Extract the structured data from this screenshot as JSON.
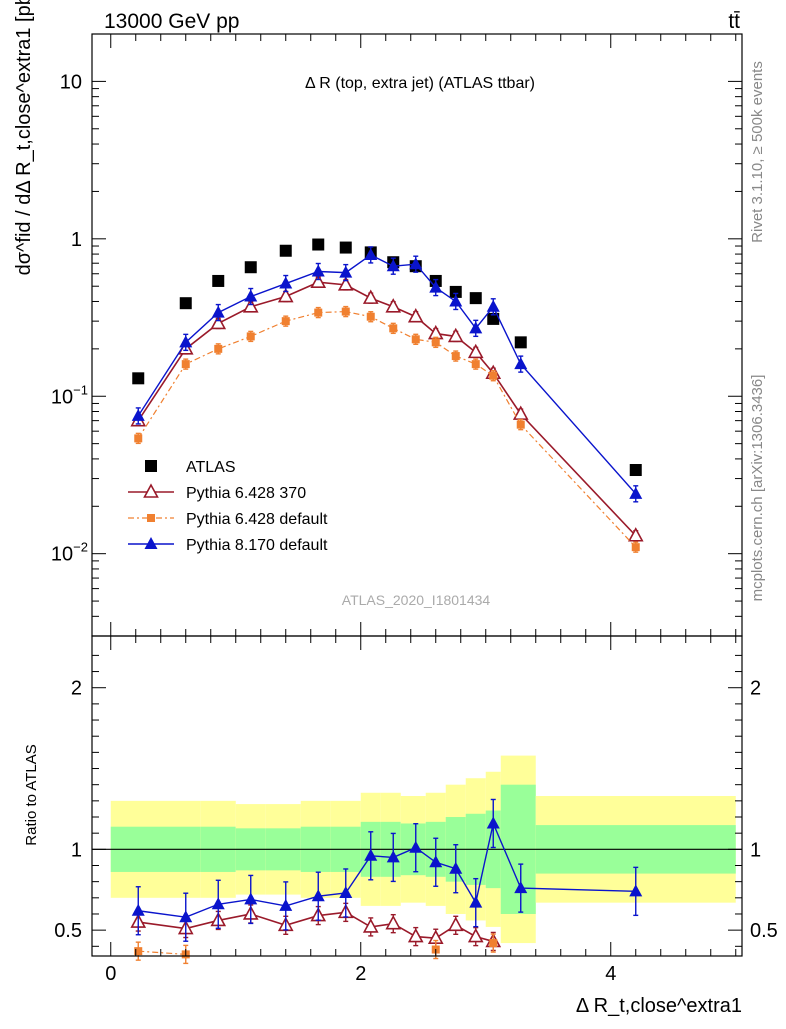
{
  "header": {
    "left": "13000 GeV pp",
    "right": "tt̄"
  },
  "side": {
    "rivet": "Rivet 3.1.10, ≥ 500k events",
    "mcplots": "mcplots.cern.ch [arXiv:1306.3436]"
  },
  "chart_data": [
    {
      "type": "scatter",
      "title": "Δ R (top, extra jet) (ATLAS ttbar)",
      "ylabel": "dσ^fid / dΔ R_t,close^extra1 [pb]",
      "watermark": "ATLAS_2020_I1801434",
      "yscale": "log",
      "ylim": [
        0.003,
        20
      ],
      "xlim": [
        -0.15,
        5.05
      ],
      "yticks": [
        {
          "v": 0.01,
          "base": "10",
          "exp": "−2"
        },
        {
          "v": 0.1,
          "base": "10",
          "exp": "−1"
        },
        {
          "v": 1,
          "base": "1",
          "exp": ""
        },
        {
          "v": 10,
          "base": "10",
          "exp": ""
        }
      ],
      "legend_position": "lower-left",
      "legend": [
        {
          "label": "ATLAS",
          "color": "#000000",
          "marker": "square"
        },
        {
          "label": "Pythia 6.428 370",
          "color": "#9a1a2a",
          "marker": "triangle-open"
        },
        {
          "label": "Pythia 6.428 default",
          "color": "#f08030",
          "marker": "square-small"
        },
        {
          "label": "Pythia 8.170 default",
          "color": "#0a14cc",
          "marker": "triangle"
        }
      ],
      "series": [
        {
          "color": "#000000",
          "x": [
            0.22,
            0.6,
            0.86,
            1.12,
            1.4,
            1.66,
            1.88,
            2.08,
            2.26,
            2.44,
            2.6,
            2.76,
            2.92,
            3.06,
            3.28,
            4.2
          ],
          "y": [
            0.13,
            0.39,
            0.54,
            0.66,
            0.84,
            0.92,
            0.88,
            0.82,
            0.71,
            0.67,
            0.54,
            0.46,
            0.42,
            0.31,
            0.22,
            0.034
          ]
        },
        {
          "color": "#9a1a2a",
          "x": [
            0.22,
            0.6,
            0.86,
            1.12,
            1.4,
            1.66,
            1.88,
            2.08,
            2.26,
            2.44,
            2.6,
            2.76,
            2.92,
            3.06,
            3.28,
            4.2
          ],
          "y": [
            0.07,
            0.2,
            0.29,
            0.37,
            0.43,
            0.53,
            0.51,
            0.42,
            0.37,
            0.32,
            0.25,
            0.24,
            0.19,
            0.14,
            0.077,
            0.013
          ]
        },
        {
          "color": "#f08030",
          "x": [
            0.22,
            0.6,
            0.86,
            1.12,
            1.4,
            1.66,
            1.88,
            2.08,
            2.26,
            2.44,
            2.6,
            2.76,
            2.92,
            3.06,
            3.28,
            4.2
          ],
          "y": [
            0.054,
            0.16,
            0.2,
            0.24,
            0.3,
            0.34,
            0.345,
            0.32,
            0.27,
            0.23,
            0.22,
            0.18,
            0.16,
            0.135,
            0.066,
            0.011
          ]
        },
        {
          "color": "#0a14cc",
          "x": [
            0.22,
            0.6,
            0.86,
            1.12,
            1.4,
            1.66,
            1.88,
            2.08,
            2.26,
            2.44,
            2.6,
            2.76,
            2.92,
            3.06,
            3.28,
            4.2
          ],
          "y": [
            0.075,
            0.22,
            0.34,
            0.43,
            0.52,
            0.62,
            0.61,
            0.79,
            0.67,
            0.69,
            0.49,
            0.4,
            0.27,
            0.37,
            0.16,
            0.024
          ]
        }
      ]
    },
    {
      "type": "scatter",
      "ylabel": "Ratio to ATLAS",
      "xlabel": "Δ R_t,close^extra1",
      "ylim": [
        0.34,
        2.32
      ],
      "xlim": [
        -0.15,
        5.05
      ],
      "yticks": [
        0.5,
        1,
        2
      ],
      "xticks": [
        0,
        2,
        4
      ],
      "bands": {
        "edges": [
          0.0,
          0.72,
          1.0,
          1.24,
          1.52,
          1.76,
          2.0,
          2.16,
          2.32,
          2.52,
          2.68,
          2.84,
          3.0,
          3.12,
          3.4,
          5.0
        ],
        "inner_lo": [
          0.86,
          0.86,
          0.87,
          0.87,
          0.86,
          0.86,
          0.83,
          0.83,
          0.84,
          0.83,
          0.8,
          0.78,
          0.76,
          0.6,
          0.85
        ],
        "inner_hi": [
          1.14,
          1.14,
          1.13,
          1.13,
          1.14,
          1.14,
          1.17,
          1.17,
          1.16,
          1.17,
          1.2,
          1.22,
          1.24,
          1.4,
          1.15
        ],
        "outer_lo": [
          0.7,
          0.7,
          0.72,
          0.72,
          0.7,
          0.7,
          0.65,
          0.65,
          0.67,
          0.65,
          0.6,
          0.56,
          0.52,
          0.42,
          0.67
        ],
        "outer_hi": [
          1.3,
          1.3,
          1.28,
          1.28,
          1.3,
          1.3,
          1.35,
          1.35,
          1.33,
          1.35,
          1.4,
          1.44,
          1.48,
          1.58,
          1.33
        ]
      },
      "series": [
        {
          "color": "#9a1a2a",
          "x": [
            0.22,
            0.6,
            0.86,
            1.12,
            1.4,
            1.66,
            1.88,
            2.08,
            2.26,
            2.44,
            2.6,
            2.76,
            2.92,
            3.06
          ],
          "y": [
            0.55,
            0.51,
            0.56,
            0.6,
            0.53,
            0.59,
            0.61,
            0.52,
            0.54,
            0.46,
            0.45,
            0.53,
            0.46,
            0.43
          ]
        },
        {
          "color": "#f08030",
          "x": [
            0.22,
            0.6,
            2.6,
            3.06
          ],
          "y": [
            0.37,
            0.35,
            0.38,
            0.42
          ]
        },
        {
          "color": "#0a14cc",
          "x": [
            0.22,
            0.6,
            0.86,
            1.12,
            1.4,
            1.66,
            1.88,
            2.08,
            2.26,
            2.44,
            2.6,
            2.76,
            2.92,
            3.06,
            3.28,
            4.2
          ],
          "y": [
            0.62,
            0.58,
            0.66,
            0.69,
            0.65,
            0.71,
            0.73,
            0.96,
            0.95,
            1.01,
            0.92,
            0.88,
            0.67,
            1.16,
            0.76,
            0.74
          ]
        }
      ]
    }
  ]
}
